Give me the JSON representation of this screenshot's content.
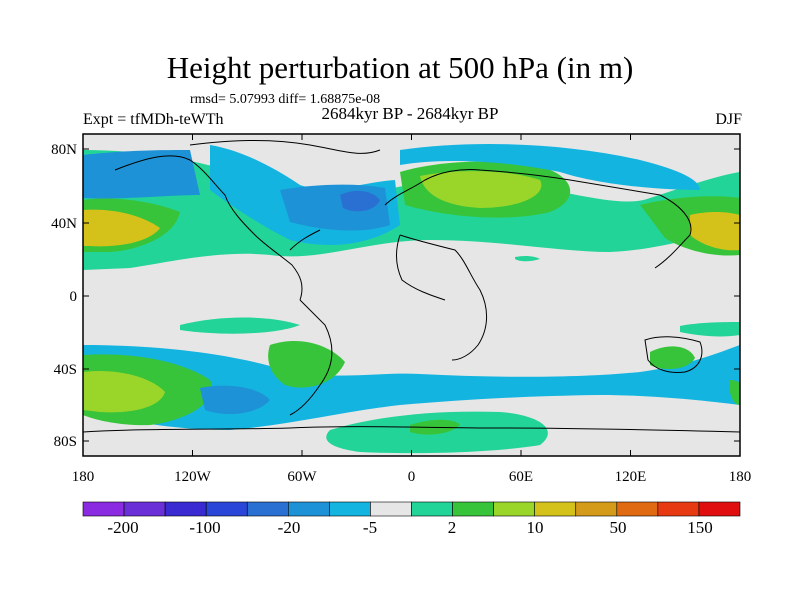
{
  "title": "Height perturbation at 500 hPa (in m)",
  "stats": "rmsd= 5.07993 diff= 1.68875e-08",
  "experiment_label": "Expt = tfMDh-teWTh",
  "period_label": "2684kyr BP - 2684kyr BP",
  "season_label": "DJF",
  "lat_labels": [
    "80N",
    "40N",
    "0",
    "40S",
    "80S"
  ],
  "lon_labels": [
    "180",
    "120W",
    "60W",
    "0",
    "60E",
    "120E",
    "180"
  ],
  "colorbar": {
    "colors": [
      "#8a2be2",
      "#6a2fd6",
      "#3a2ad2",
      "#2a46d8",
      "#2a70d2",
      "#1e92d6",
      "#14b4e0",
      "#e6e6e6",
      "#23d498",
      "#38c43a",
      "#9ad62a",
      "#d4c11a",
      "#d49a1a",
      "#e06a12",
      "#e83a12",
      "#e00e0e"
    ],
    "labels": [
      "-200",
      "-100",
      "-20",
      "-5",
      "2",
      "10",
      "50",
      "150"
    ]
  }
}
